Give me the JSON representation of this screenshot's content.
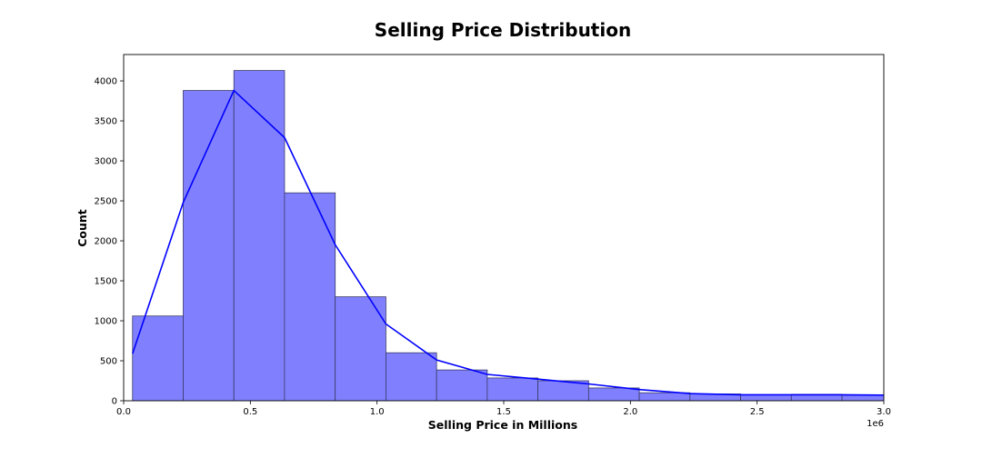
{
  "chart_data": {
    "type": "bar",
    "subtype": "histogram-with-kde",
    "title": "Selling Price Distribution",
    "xlabel": "Selling Price in Millions",
    "ylabel": "Count",
    "x_offset_label": "1e6",
    "xlim": [
      0,
      3000000
    ],
    "ylim": [
      0,
      4330
    ],
    "x_ticks": [
      {
        "value": 0,
        "label": "0.0"
      },
      {
        "value": 500000,
        "label": "0.5"
      },
      {
        "value": 1000000,
        "label": "1.0"
      },
      {
        "value": 1500000,
        "label": "1.5"
      },
      {
        "value": 2000000,
        "label": "2.0"
      },
      {
        "value": 2500000,
        "label": "2.5"
      },
      {
        "value": 3000000,
        "label": "3.0"
      }
    ],
    "y_ticks": [
      {
        "value": 0,
        "label": "0"
      },
      {
        "value": 500,
        "label": "500"
      },
      {
        "value": 1000,
        "label": "1000"
      },
      {
        "value": 1500,
        "label": "1500"
      },
      {
        "value": 2000,
        "label": "2000"
      },
      {
        "value": 2500,
        "label": "2500"
      },
      {
        "value": 3000,
        "label": "3000"
      },
      {
        "value": 3500,
        "label": "3500"
      },
      {
        "value": 4000,
        "label": "4000"
      }
    ],
    "bins": [
      {
        "start": 35000,
        "end": 235000,
        "count": 1060
      },
      {
        "start": 235000,
        "end": 435000,
        "count": 3880
      },
      {
        "start": 435000,
        "end": 635000,
        "count": 4130
      },
      {
        "start": 635000,
        "end": 835000,
        "count": 2600
      },
      {
        "start": 835000,
        "end": 1035000,
        "count": 1300
      },
      {
        "start": 1035000,
        "end": 1235000,
        "count": 600
      },
      {
        "start": 1235000,
        "end": 1435000,
        "count": 385
      },
      {
        "start": 1435000,
        "end": 1635000,
        "count": 285
      },
      {
        "start": 1635000,
        "end": 1835000,
        "count": 250
      },
      {
        "start": 1835000,
        "end": 2035000,
        "count": 160
      },
      {
        "start": 2035000,
        "end": 2235000,
        "count": 100
      },
      {
        "start": 2235000,
        "end": 2435000,
        "count": 85
      },
      {
        "start": 2435000,
        "end": 2635000,
        "count": 75
      },
      {
        "start": 2635000,
        "end": 2835000,
        "count": 80
      },
      {
        "start": 2835000,
        "end": 3035000,
        "count": 70
      }
    ],
    "kde": {
      "x": [
        35000,
        235000,
        435000,
        635000,
        835000,
        1035000,
        1235000,
        1435000,
        1635000,
        1835000,
        2035000,
        2235000,
        2435000,
        2635000,
        2835000,
        3000000
      ],
      "y": [
        590,
        2480,
        3880,
        3290,
        1950,
        960,
        510,
        330,
        270,
        210,
        140,
        90,
        75,
        75,
        75,
        70
      ]
    },
    "colors": {
      "bar_fill": "#8080ff",
      "bar_edge": "#3a3a66",
      "kde_line": "#0000ff"
    },
    "grid": false,
    "legend": "none"
  }
}
